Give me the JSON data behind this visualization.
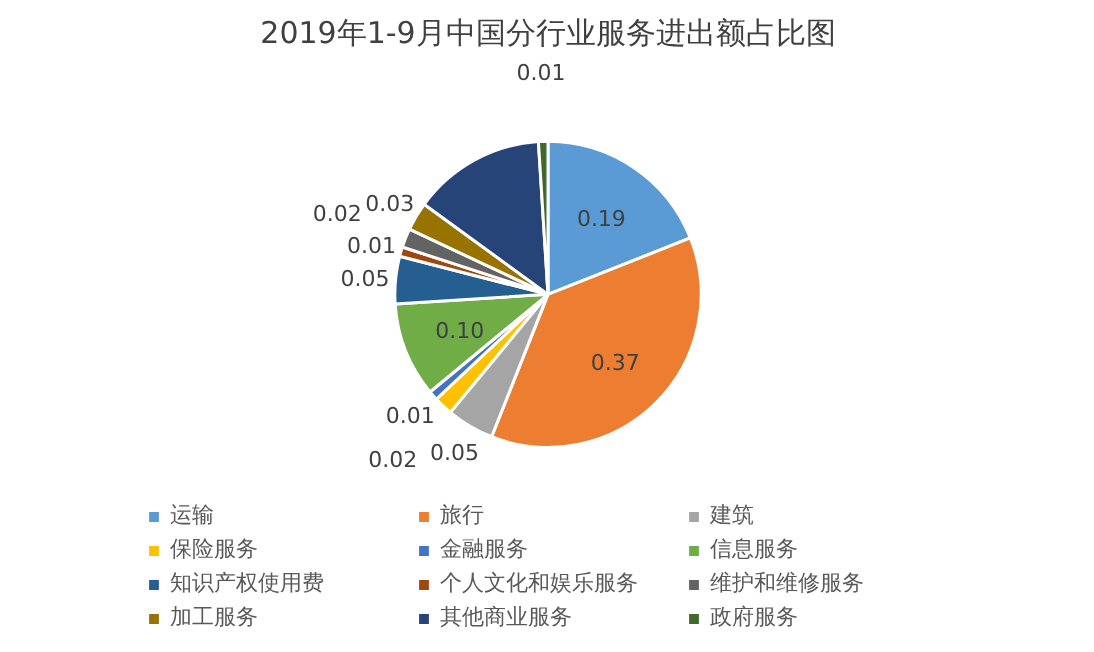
{
  "chart_data": {
    "type": "pie",
    "title": "2019年1-9月中国分行业服务进出额占比图",
    "categories": [
      "运输",
      "旅行",
      "建筑",
      "保险服务",
      "金融服务",
      "信息服务",
      "知识产权使用费",
      "个人文化和娱乐服务",
      "维护和维修服务",
      "加工服务",
      "其他商业服务",
      "政府服务"
    ],
    "values": [
      0.19,
      0.37,
      0.05,
      0.02,
      0.01,
      0.1,
      0.05,
      0.01,
      0.02,
      0.03,
      0.14,
      0.01
    ],
    "value_labels": [
      "0.19",
      "0.37",
      "0.05",
      "0.02",
      "0.01",
      "0.10",
      "0.05",
      "0.01",
      "0.02",
      "0.03",
      null,
      "0.01"
    ],
    "colors": [
      "#5b9bd5",
      "#ed7d31",
      "#a5a5a5",
      "#ffc000",
      "#4472c4",
      "#70ad47",
      "#255e91",
      "#9e480e",
      "#636363",
      "#997300",
      "#264478",
      "#43682b"
    ],
    "legend": "bottom"
  }
}
